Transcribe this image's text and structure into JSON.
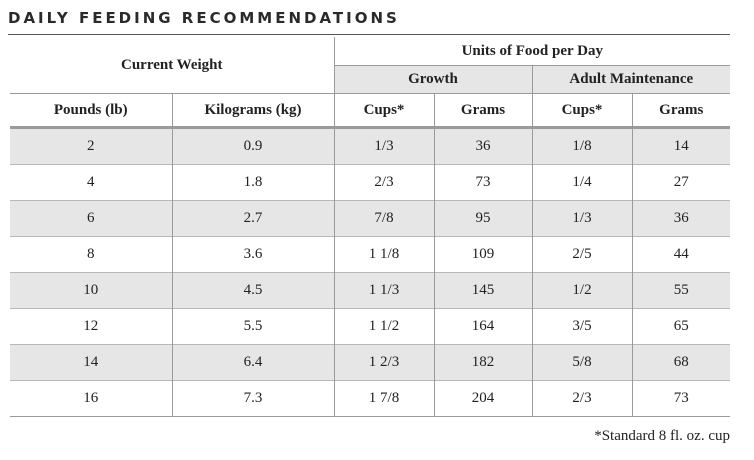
{
  "title": "DAILY FEEDING RECOMMENDATIONS",
  "header": {
    "current_weight": "Current Weight",
    "units_per_day": "Units of Food per Day",
    "growth": "Growth",
    "adult_maintenance": "Adult Maintenance",
    "columns": [
      "Pounds (lb)",
      "Kilograms (kg)",
      "Cups*",
      "Grams",
      "Cups*",
      "Grams"
    ]
  },
  "rows": [
    [
      "2",
      "0.9",
      "1/3",
      "36",
      "1/8",
      "14"
    ],
    [
      "4",
      "1.8",
      "2/3",
      "73",
      "1/4",
      "27"
    ],
    [
      "6",
      "2.7",
      "7/8",
      "95",
      "1/3",
      "36"
    ],
    [
      "8",
      "3.6",
      "1 1/8",
      "109",
      "2/5",
      "44"
    ],
    [
      "10",
      "4.5",
      "1 1/3",
      "145",
      "1/2",
      "55"
    ],
    [
      "12",
      "5.5",
      "1 1/2",
      "164",
      "3/5",
      "65"
    ],
    [
      "14",
      "6.4",
      "1 2/3",
      "182",
      "5/8",
      "68"
    ],
    [
      "16",
      "7.3",
      "1 7/8",
      "204",
      "2/3",
      "73"
    ]
  ],
  "footnote": "*Standard 8 fl. oz. cup"
}
